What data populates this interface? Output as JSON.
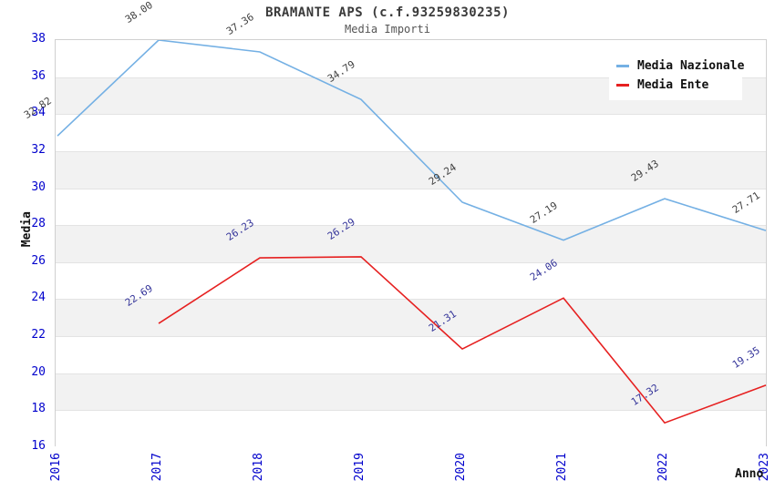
{
  "chart_data": {
    "type": "line",
    "title": "BRAMANTE APS (c.f.93259830235)",
    "subtitle": "Media Importi",
    "xlabel": "Anno",
    "ylabel": "Media",
    "categories": [
      "2016",
      "2017",
      "2018",
      "2019",
      "2020",
      "2021",
      "2022",
      "2023"
    ],
    "ylim": [
      16,
      38
    ],
    "ytick_step": 2,
    "grid": "horizontal-bands",
    "legend_position": "top-right-inside",
    "series": [
      {
        "name": "Media Nazionale",
        "color": "#74b0e4",
        "label_color": "#3f3f3f",
        "x": [
          "2016",
          "2017",
          "2018",
          "2019",
          "2020",
          "2021",
          "2022",
          "2023"
        ],
        "values": [
          32.82,
          38.0,
          37.36,
          34.79,
          29.24,
          27.19,
          29.43,
          27.71
        ],
        "labels": [
          "32.82",
          "38.00",
          "37.36",
          "34.79",
          "29.24",
          "27.19",
          "29.43",
          "27.71"
        ]
      },
      {
        "name": "Media Ente",
        "color": "#e62020",
        "label_color": "#333399",
        "x": [
          "2017",
          "2018",
          "2019",
          "2020",
          "2021",
          "2022",
          "2023"
        ],
        "values": [
          22.69,
          26.23,
          26.29,
          21.31,
          24.06,
          17.32,
          19.35
        ],
        "labels": [
          "22.69",
          "26.23",
          "26.29",
          "21.31",
          "24.06",
          "17.32",
          "19.35"
        ]
      }
    ],
    "colors": {
      "tick_label": "#0000cc",
      "band_fill": "#f2f2f2",
      "grid_line": "#e3e3e3",
      "plot_border": "#d0d0d0",
      "title_text": "#3a3a3a",
      "subtitle_text": "#555555",
      "legend_text": "#111111"
    }
  }
}
